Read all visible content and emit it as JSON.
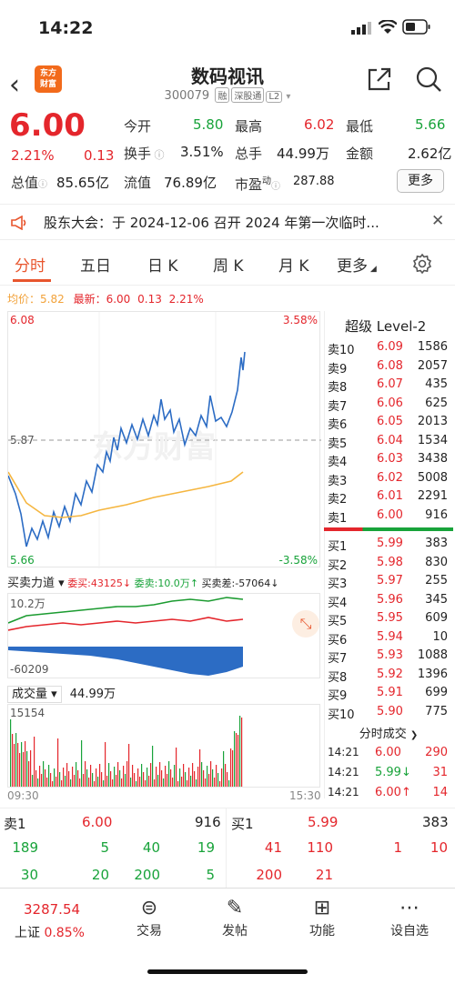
{
  "status": {
    "time": "14:22"
  },
  "header": {
    "logo_line1": "东方",
    "logo_line2": "财富",
    "title": "数码视讯",
    "code": "300079",
    "tags": [
      "融",
      "深股通",
      "L2"
    ]
  },
  "quote": {
    "price": "6.00",
    "change_pct": "2.21%",
    "change": "0.13",
    "open_label": "今开",
    "open": "5.80",
    "high_label": "最高",
    "high": "6.02",
    "low_label": "最低",
    "low": "5.66",
    "turnover_label": "换手",
    "turnover": "3.51%",
    "vol_label": "总手",
    "vol": "44.99万",
    "amount_label": "金额",
    "amount": "2.62亿",
    "mktcap_label": "总值",
    "mktcap": "85.65亿",
    "float_label": "流值",
    "float": "76.89亿",
    "pe_label": "市盈",
    "pe_sup": "动",
    "pe": "287.88",
    "more": "更多"
  },
  "notice": {
    "text": "股东大会：于 2024-12-06 召开 2024 年第一次临时..."
  },
  "tabs": [
    "分时",
    "五日",
    "日 K",
    "周 K",
    "月 K",
    "更多"
  ],
  "chart": {
    "avg_label": "均价：",
    "avg": "5.82",
    "latest_label": "最新：",
    "latest": "6.00",
    "latest_change": "0.13",
    "latest_pct": "2.21%",
    "y_top": "6.08",
    "y_mid": "5.87",
    "y_bot": "5.66",
    "pct_top": "3.58%",
    "pct_bot": "-3.58%",
    "flow_label": "买卖力道",
    "flow_buy": "委买:43125",
    "flow_sell": "委卖:10.0万",
    "flow_diff": "买卖差:-57064",
    "flow_top": "10.2万",
    "flow_bot": "-60209",
    "vol_label": "成交量",
    "vol_value": "44.99万",
    "vol_max": "15154",
    "t_start": "09:30",
    "t_end": "15:30",
    "watermark": "东方财富"
  },
  "level2": {
    "title": "超级 Level-2",
    "asks": [
      {
        "label": "卖10",
        "price": "6.09",
        "vol": "1586"
      },
      {
        "label": "卖9",
        "price": "6.08",
        "vol": "2057"
      },
      {
        "label": "卖8",
        "price": "6.07",
        "vol": "435"
      },
      {
        "label": "卖7",
        "price": "6.06",
        "vol": "625"
      },
      {
        "label": "卖6",
        "price": "6.05",
        "vol": "2013"
      },
      {
        "label": "卖5",
        "price": "6.04",
        "vol": "1534"
      },
      {
        "label": "卖4",
        "price": "6.03",
        "vol": "3438"
      },
      {
        "label": "卖3",
        "price": "6.02",
        "vol": "5008"
      },
      {
        "label": "卖2",
        "price": "6.01",
        "vol": "2291"
      },
      {
        "label": "卖1",
        "price": "6.00",
        "vol": "916"
      }
    ],
    "bids": [
      {
        "label": "买1",
        "price": "5.99",
        "vol": "383"
      },
      {
        "label": "买2",
        "price": "5.98",
        "vol": "830"
      },
      {
        "label": "买3",
        "price": "5.97",
        "vol": "255"
      },
      {
        "label": "买4",
        "price": "5.96",
        "vol": "345"
      },
      {
        "label": "买5",
        "price": "5.95",
        "vol": "609"
      },
      {
        "label": "买6",
        "price": "5.94",
        "vol": "10"
      },
      {
        "label": "买7",
        "price": "5.93",
        "vol": "1088"
      },
      {
        "label": "买8",
        "price": "5.92",
        "vol": "1396"
      },
      {
        "label": "买9",
        "price": "5.91",
        "vol": "699"
      },
      {
        "label": "买10",
        "price": "5.90",
        "vol": "775"
      }
    ],
    "ticks_title": "分时成交",
    "ticks": [
      {
        "time": "14:21",
        "price": "6.00",
        "arrow": "",
        "vol": "290",
        "color": "red"
      },
      {
        "time": "14:21",
        "price": "5.99",
        "arrow": "↓",
        "vol": "31",
        "color": "green"
      },
      {
        "time": "14:21",
        "price": "6.00",
        "arrow": "↑",
        "vol": "14",
        "color": "red"
      }
    ]
  },
  "trade_panel": {
    "sell1_label": "卖1",
    "sell1_price": "6.00",
    "sell1_vol": "916",
    "buy1_label": "买1",
    "buy1_price": "5.99",
    "buy1_vol": "383",
    "left_row1": [
      "189",
      "5",
      "40",
      "19"
    ],
    "left_row2": [
      "30",
      "20",
      "200",
      "5"
    ],
    "right_row1": [
      "41",
      "110",
      "1",
      "10"
    ],
    "right_row2": [
      "200",
      "21"
    ]
  },
  "tabbar": {
    "index_value": "3287.54",
    "index_name": "上证",
    "index_pct": "0.85%",
    "items": [
      {
        "icon": "trade-icon",
        "label": "交易"
      },
      {
        "icon": "post-icon",
        "label": "发帖"
      },
      {
        "icon": "function-icon",
        "label": "功能"
      },
      {
        "icon": "more-icon",
        "label": "设自选"
      }
    ]
  }
}
